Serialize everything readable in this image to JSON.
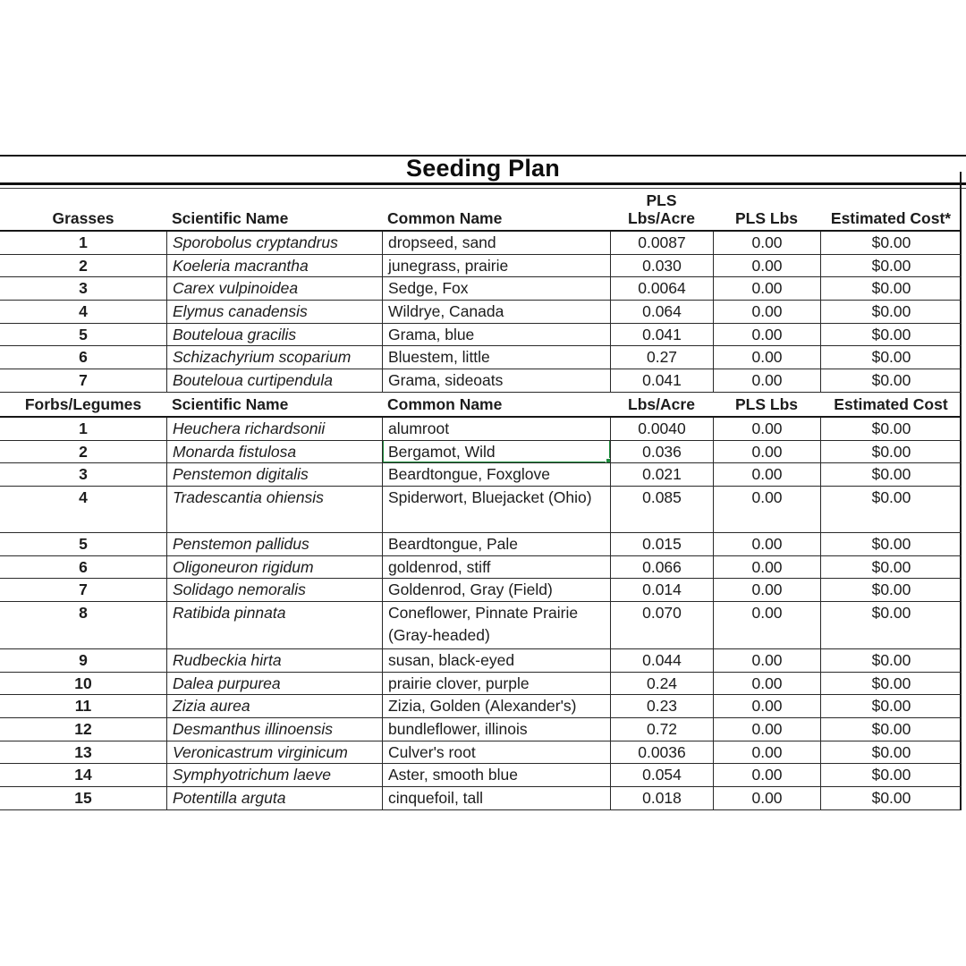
{
  "title": "Seeding Plan",
  "selection": {
    "color": "#1e8e3e",
    "section": 1,
    "row_index": 1,
    "column": "common"
  },
  "sections": [
    {
      "header": {
        "group_label": "Grasses",
        "scientific_label": "Scientific Name",
        "common_label": "Common Name",
        "lbs_acre_label_top": "PLS",
        "lbs_acre_label": "Lbs/Acre",
        "pls_lbs_label": "PLS Lbs",
        "cost_label": "Estimated Cost*"
      },
      "rows": [
        {
          "num": "1",
          "scientific": "Sporobolus cryptandrus",
          "common": "dropseed, sand",
          "lbs_acre": "0.0087",
          "pls_lbs": "0.00",
          "cost": "$0.00"
        },
        {
          "num": "2",
          "scientific": "Koeleria macrantha",
          "common": "junegrass, prairie",
          "lbs_acre": "0.030",
          "pls_lbs": "0.00",
          "cost": "$0.00"
        },
        {
          "num": "3",
          "scientific": "Carex vulpinoidea",
          "common": "Sedge, Fox",
          "lbs_acre": "0.0064",
          "pls_lbs": "0.00",
          "cost": "$0.00"
        },
        {
          "num": "4",
          "scientific": "Elymus canadensis",
          "common": "Wildrye, Canada",
          "lbs_acre": "0.064",
          "pls_lbs": "0.00",
          "cost": "$0.00"
        },
        {
          "num": "5",
          "scientific": "Bouteloua gracilis",
          "common": "Grama, blue",
          "lbs_acre": "0.041",
          "pls_lbs": "0.00",
          "cost": "$0.00"
        },
        {
          "num": "6",
          "scientific": "Schizachyrium scoparium",
          "common": "Bluestem, little",
          "lbs_acre": "0.27",
          "pls_lbs": "0.00",
          "cost": "$0.00"
        },
        {
          "num": "7",
          "scientific": "Bouteloua curtipendula",
          "common": "Grama, sideoats",
          "lbs_acre": "0.041",
          "pls_lbs": "0.00",
          "cost": "$0.00"
        }
      ]
    },
    {
      "header": {
        "group_label": "Forbs/Legumes",
        "scientific_label": "Scientific Name",
        "common_label": "Common Name",
        "lbs_acre_label": "Lbs/Acre",
        "pls_lbs_label": "PLS Lbs",
        "cost_label": "Estimated Cost"
      },
      "rows": [
        {
          "num": "1",
          "scientific": "Heuchera richardsonii",
          "common": "alumroot",
          "lbs_acre": "0.0040",
          "pls_lbs": "0.00",
          "cost": "$0.00"
        },
        {
          "num": "2",
          "scientific": "Monarda fistulosa",
          "common": "Bergamot, Wild",
          "lbs_acre": "0.036",
          "pls_lbs": "0.00",
          "cost": "$0.00",
          "selected": true
        },
        {
          "num": "3",
          "scientific": "Penstemon digitalis",
          "common": "Beardtongue, Foxglove",
          "lbs_acre": "0.021",
          "pls_lbs": "0.00",
          "cost": "$0.00"
        },
        {
          "num": "4",
          "scientific": "Tradescantia ohiensis",
          "common": "Spiderwort, Bluejacket (Ohio)",
          "lbs_acre": "0.085",
          "pls_lbs": "0.00",
          "cost": "$0.00",
          "tall": "a"
        },
        {
          "num": "5",
          "scientific": "Penstemon pallidus",
          "common": "Beardtongue, Pale",
          "lbs_acre": "0.015",
          "pls_lbs": "0.00",
          "cost": "$0.00"
        },
        {
          "num": "6",
          "scientific": "Oligoneuron rigidum",
          "common": "goldenrod, stiff",
          "lbs_acre": "0.066",
          "pls_lbs": "0.00",
          "cost": "$0.00"
        },
        {
          "num": "7",
          "scientific": "Solidago nemoralis",
          "common": "Goldenrod, Gray (Field)",
          "lbs_acre": "0.014",
          "pls_lbs": "0.00",
          "cost": "$0.00"
        },
        {
          "num": "8",
          "scientific": "Ratibida pinnata",
          "common": "Coneflower, Pinnate Prairie (Gray-headed)",
          "lbs_acre": "0.070",
          "pls_lbs": "0.00",
          "cost": "$0.00",
          "tall": "b"
        },
        {
          "num": "9",
          "scientific": "Rudbeckia hirta",
          "common": "susan, black-eyed",
          "lbs_acre": "0.044",
          "pls_lbs": "0.00",
          "cost": "$0.00"
        },
        {
          "num": "10",
          "scientific": "Dalea purpurea",
          "common": "prairie clover, purple",
          "lbs_acre": "0.24",
          "pls_lbs": "0.00",
          "cost": "$0.00"
        },
        {
          "num": "11",
          "scientific": "Zizia aurea",
          "common": "Zizia, Golden (Alexander's)",
          "lbs_acre": "0.23",
          "pls_lbs": "0.00",
          "cost": "$0.00"
        },
        {
          "num": "12",
          "scientific": "Desmanthus illinoensis",
          "common": "bundleflower, illinois",
          "lbs_acre": "0.72",
          "pls_lbs": "0.00",
          "cost": "$0.00"
        },
        {
          "num": "13",
          "scientific": "Veronicastrum virginicum",
          "common": "Culver's root",
          "lbs_acre": "0.0036",
          "pls_lbs": "0.00",
          "cost": "$0.00"
        },
        {
          "num": "14",
          "scientific": "Symphyotrichum laeve",
          "common": "Aster, smooth blue",
          "lbs_acre": "0.054",
          "pls_lbs": "0.00",
          "cost": "$0.00"
        },
        {
          "num": "15",
          "scientific": "Potentilla arguta",
          "common": "cinquefoil, tall",
          "lbs_acre": "0.018",
          "pls_lbs": "0.00",
          "cost": "$0.00"
        }
      ]
    }
  ]
}
